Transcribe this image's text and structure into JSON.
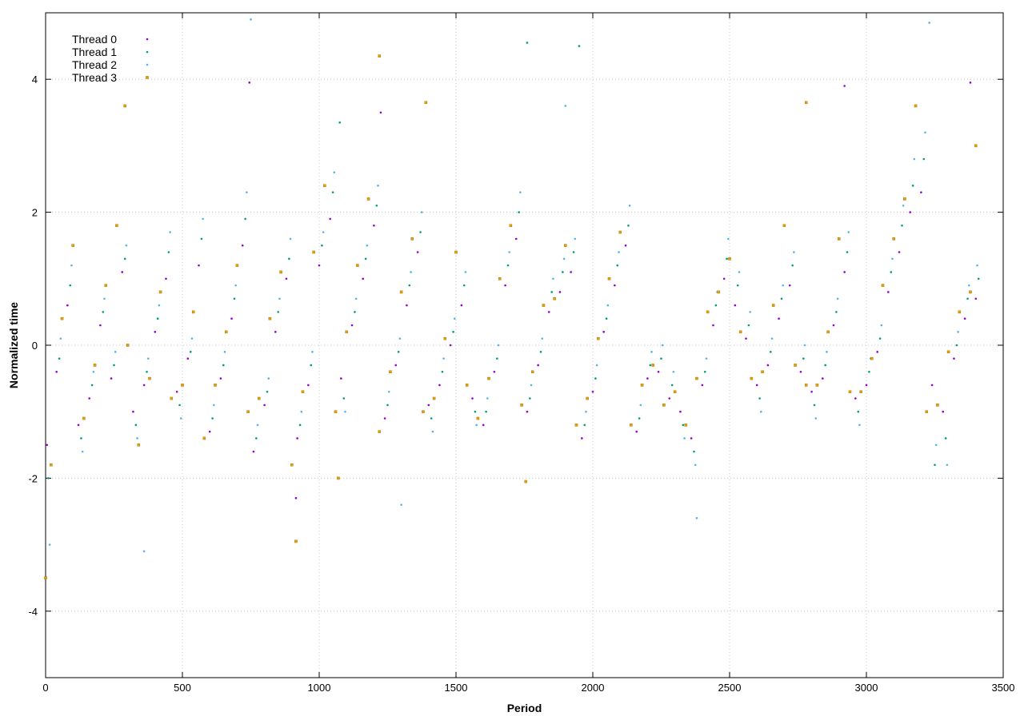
{
  "chart_data": {
    "type": "scatter",
    "xlabel": "Period",
    "ylabel": "Normalized time",
    "xlim": [
      0,
      3500
    ],
    "ylim": [
      -5,
      5
    ],
    "x_ticks": [
      0,
      500,
      1000,
      1500,
      2000,
      2500,
      3000,
      3500
    ],
    "y_ticks": [
      -4,
      -2,
      0,
      2,
      4
    ],
    "x_tick_labels": [
      "0",
      "500",
      "1000",
      "1500",
      "2000",
      "2500",
      "3000",
      "3500"
    ],
    "y_tick_labels": [
      "-4",
      "-2",
      "0",
      "2",
      "4"
    ],
    "grid": true,
    "legend_position": "top-left",
    "series": [
      {
        "name": "Thread 0",
        "color": "#9400d3",
        "marker": "dot",
        "x": [
          5,
          40,
          80,
          120,
          160,
          200,
          240,
          280,
          320,
          360,
          400,
          440,
          480,
          520,
          560,
          600,
          640,
          680,
          720,
          760,
          800,
          840,
          880,
          920,
          960,
          1000,
          1040,
          1080,
          1120,
          1160,
          1200,
          1240,
          1280,
          1320,
          1360,
          1400,
          1440,
          1480,
          1520,
          1560,
          1600,
          1640,
          1680,
          1720,
          1760,
          1800,
          1840,
          1880,
          1920,
          1960,
          2000,
          2040,
          2080,
          2120,
          2160,
          2200,
          2240,
          2280,
          2320,
          2360,
          2400,
          2440,
          2480,
          2520,
          2560,
          2600,
          2640,
          2680,
          2720,
          2760,
          2800,
          2840,
          2880,
          2920,
          2960,
          3000,
          3040,
          3080,
          3120,
          3160,
          3200,
          3240,
          3280,
          3320,
          3360,
          3400,
          745,
          1225,
          915,
          2920,
          3380
        ],
        "y": [
          -1.5,
          -0.4,
          0.6,
          -1.2,
          -0.8,
          0.3,
          -0.5,
          1.1,
          -1.0,
          -0.6,
          0.2,
          1.0,
          -0.7,
          -0.2,
          1.2,
          -1.3,
          -0.5,
          0.4,
          1.5,
          -1.6,
          -0.9,
          0.2,
          1.0,
          -1.4,
          -0.6,
          1.2,
          1.9,
          -0.5,
          0.3,
          1.0,
          1.8,
          -1.1,
          -0.3,
          0.6,
          1.4,
          -0.9,
          -0.6,
          0.0,
          0.6,
          -0.8,
          -1.2,
          -0.4,
          0.9,
          1.6,
          -1.0,
          -0.3,
          0.5,
          0.8,
          1.1,
          -1.4,
          -0.7,
          0.2,
          0.9,
          1.5,
          -1.3,
          -0.5,
          -0.4,
          -0.8,
          -1.0,
          -1.4,
          -0.6,
          0.3,
          1.0,
          0.6,
          0.1,
          -0.6,
          -0.3,
          0.4,
          0.9,
          -0.4,
          -0.7,
          -0.5,
          0.3,
          1.1,
          -0.8,
          -0.6,
          -0.1,
          0.8,
          1.4,
          2.0,
          2.3,
          -0.6,
          -1.0,
          -0.2,
          0.4,
          0.7,
          3.95,
          3.5,
          -2.3,
          3.9,
          3.95
        ]
      },
      {
        "name": "Thread 1",
        "color": "#009e73",
        "marker": "dot",
        "x": [
          10,
          50,
          90,
          130,
          170,
          210,
          250,
          290,
          330,
          370,
          410,
          450,
          490,
          530,
          570,
          610,
          650,
          690,
          730,
          770,
          810,
          850,
          890,
          930,
          970,
          1010,
          1050,
          1090,
          1130,
          1170,
          1210,
          1250,
          1290,
          1330,
          1370,
          1410,
          1450,
          1490,
          1530,
          1570,
          1610,
          1650,
          1690,
          1730,
          1770,
          1810,
          1850,
          1890,
          1930,
          1970,
          2010,
          2050,
          2090,
          2130,
          2170,
          2210,
          2250,
          2290,
          2330,
          2370,
          2410,
          2450,
          2490,
          2530,
          2570,
          2610,
          2650,
          2690,
          2730,
          2770,
          2810,
          2850,
          2890,
          2930,
          2970,
          3010,
          3050,
          3090,
          3130,
          3170,
          3210,
          3250,
          3290,
          3330,
          3370,
          3410,
          1950,
          1760,
          1075
        ],
        "y": [
          -2.0,
          -0.2,
          0.9,
          -1.4,
          -0.6,
          0.5,
          -0.3,
          1.3,
          -1.2,
          -0.4,
          0.4,
          1.4,
          -0.9,
          -0.1,
          1.6,
          -1.1,
          -0.3,
          0.7,
          1.9,
          -1.4,
          -0.7,
          0.5,
          1.3,
          -1.2,
          -0.3,
          1.5,
          2.3,
          -0.8,
          0.5,
          1.3,
          2.1,
          -0.9,
          -0.1,
          0.9,
          1.7,
          -1.1,
          -0.4,
          0.2,
          0.9,
          -1.0,
          -1.0,
          -0.2,
          1.2,
          2.0,
          -0.8,
          -0.1,
          0.8,
          1.1,
          1.4,
          -1.2,
          -0.5,
          0.4,
          1.2,
          1.8,
          -1.1,
          -0.3,
          -0.2,
          -0.6,
          -1.2,
          -1.6,
          -0.4,
          0.6,
          1.3,
          0.9,
          0.3,
          -0.8,
          -0.1,
          0.7,
          1.2,
          -0.2,
          -0.9,
          -0.3,
          0.5,
          1.4,
          -1.0,
          -0.4,
          0.1,
          1.1,
          1.8,
          2.4,
          2.8,
          -1.8,
          -1.4,
          0.0,
          0.7,
          1.0,
          4.5,
          4.55,
          3.35
        ]
      },
      {
        "name": "Thread 2",
        "color": "#56b4e9",
        "marker": "dot",
        "x": [
          15,
          55,
          95,
          135,
          175,
          215,
          255,
          295,
          335,
          375,
          415,
          455,
          495,
          535,
          575,
          615,
          655,
          695,
          735,
          775,
          815,
          855,
          895,
          935,
          975,
          1015,
          1055,
          1095,
          1135,
          1175,
          1215,
          1255,
          1295,
          1335,
          1375,
          1415,
          1455,
          1495,
          1535,
          1575,
          1615,
          1655,
          1695,
          1735,
          1775,
          1815,
          1855,
          1895,
          1935,
          1975,
          2015,
          2055,
          2095,
          2135,
          2175,
          2215,
          2255,
          2295,
          2335,
          2375,
          2415,
          2455,
          2495,
          2535,
          2575,
          2615,
          2655,
          2695,
          2735,
          2775,
          2815,
          2855,
          2895,
          2935,
          2975,
          3015,
          3055,
          3095,
          3135,
          3175,
          3215,
          3255,
          3295,
          3335,
          3375,
          3405,
          750,
          360,
          3230,
          1900,
          2380,
          1300
        ],
        "y": [
          -3.0,
          0.1,
          1.2,
          -1.6,
          -0.4,
          0.7,
          -0.1,
          1.5,
          -1.4,
          -0.2,
          0.6,
          1.7,
          -1.1,
          0.1,
          1.9,
          -0.9,
          -0.1,
          0.9,
          2.3,
          -1.2,
          -0.5,
          0.7,
          1.6,
          -1.0,
          -0.1,
          1.7,
          2.6,
          -1.0,
          0.7,
          1.5,
          2.4,
          -0.7,
          0.1,
          1.1,
          2.0,
          -1.3,
          -0.2,
          0.4,
          1.1,
          -1.2,
          -0.8,
          0.0,
          1.4,
          2.3,
          -0.6,
          0.1,
          1.0,
          1.3,
          1.6,
          -1.0,
          -0.3,
          0.6,
          1.4,
          2.1,
          -0.9,
          -0.1,
          0.0,
          -0.4,
          -1.4,
          -1.8,
          -0.2,
          0.8,
          1.6,
          1.1,
          0.5,
          -1.0,
          0.1,
          0.9,
          1.4,
          0.0,
          -1.1,
          -0.1,
          0.7,
          1.7,
          -1.2,
          -0.2,
          0.3,
          1.3,
          2.1,
          2.8,
          3.2,
          -1.5,
          -1.8,
          0.2,
          0.9,
          1.2,
          4.9,
          -3.1,
          4.85,
          3.6,
          -2.6,
          -2.4
        ]
      },
      {
        "name": "Thread 3",
        "color": "#e69f00",
        "marker": "square",
        "x": [
          0,
          20,
          60,
          100,
          140,
          180,
          220,
          260,
          300,
          340,
          380,
          420,
          460,
          500,
          540,
          580,
          620,
          660,
          700,
          740,
          780,
          820,
          860,
          900,
          940,
          980,
          1020,
          1060,
          1100,
          1140,
          1180,
          1220,
          1260,
          1300,
          1340,
          1380,
          1420,
          1460,
          1500,
          1540,
          1580,
          1620,
          1660,
          1700,
          1740,
          1780,
          1820,
          1860,
          1900,
          1940,
          1980,
          2020,
          2060,
          2100,
          2140,
          2180,
          2220,
          2260,
          2300,
          2340,
          2380,
          2420,
          2460,
          2500,
          2540,
          2580,
          2620,
          2660,
          2700,
          2740,
          2780,
          2820,
          2860,
          2900,
          2940,
          2980,
          3020,
          3060,
          3100,
          3140,
          3180,
          3220,
          3260,
          3300,
          3340,
          3380,
          1220,
          290,
          1390,
          2780,
          915,
          1070,
          1755,
          3400
        ],
        "y": [
          -3.5,
          -1.8,
          0.4,
          1.5,
          -1.1,
          -0.3,
          0.9,
          1.8,
          0.0,
          -1.5,
          -0.5,
          0.8,
          -0.8,
          -0.6,
          0.5,
          -1.4,
          -0.6,
          0.2,
          1.2,
          -1.0,
          -0.8,
          0.4,
          1.1,
          -1.8,
          -0.7,
          1.4,
          2.4,
          -1.0,
          0.2,
          1.2,
          2.2,
          -1.3,
          -0.4,
          0.8,
          1.6,
          -1.0,
          -0.8,
          0.1,
          1.4,
          -0.6,
          -1.1,
          -0.5,
          1.0,
          1.8,
          -0.9,
          -0.4,
          0.6,
          0.7,
          1.5,
          -1.2,
          -0.8,
          0.1,
          1.0,
          1.7,
          -1.2,
          -0.6,
          -0.3,
          -0.9,
          -0.7,
          -1.2,
          -0.5,
          0.5,
          0.8,
          1.3,
          0.2,
          -0.5,
          -0.4,
          0.6,
          1.8,
          -0.3,
          -0.6,
          -0.6,
          0.2,
          1.6,
          -0.7,
          -0.7,
          -0.2,
          0.9,
          1.6,
          2.2,
          3.6,
          -1.0,
          -0.9,
          -0.1,
          0.5,
          0.8,
          4.35,
          3.6,
          3.65,
          3.65,
          -2.95,
          -2.0,
          -2.05,
          3.0
        ]
      }
    ]
  }
}
